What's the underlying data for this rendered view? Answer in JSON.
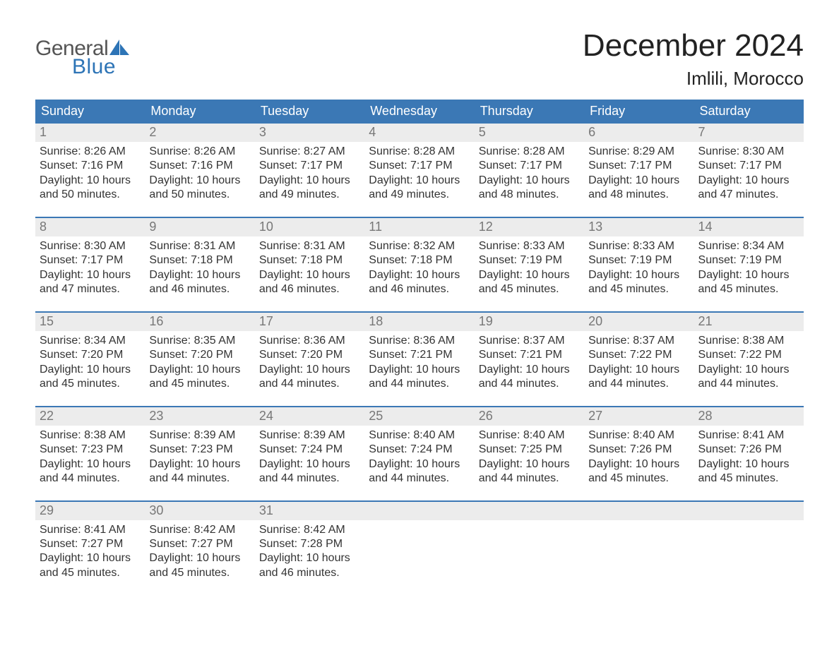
{
  "brand": {
    "text_general": "General",
    "text_blue": "Blue",
    "general_color": "#555555",
    "blue_color": "#2d74b6",
    "sail_color": "#2d74b6"
  },
  "title": "December 2024",
  "location": "Imlili, Morocco",
  "colors": {
    "header_bg": "#3b78b5",
    "header_text": "#ffffff",
    "daynum_bg": "#ececec",
    "daynum_text": "#777777",
    "body_text": "#333333",
    "week_border": "#3b78b5",
    "page_bg": "#ffffff"
  },
  "typography": {
    "title_fontsize": 44,
    "location_fontsize": 26,
    "weekday_fontsize": 18,
    "daynum_fontsize": 18,
    "content_fontsize": 16
  },
  "weekdays": [
    "Sunday",
    "Monday",
    "Tuesday",
    "Wednesday",
    "Thursday",
    "Friday",
    "Saturday"
  ],
  "weeks": [
    [
      {
        "day": "1",
        "sunrise": "Sunrise: 8:26 AM",
        "sunset": "Sunset: 7:16 PM",
        "daylight1": "Daylight: 10 hours",
        "daylight2": "and 50 minutes."
      },
      {
        "day": "2",
        "sunrise": "Sunrise: 8:26 AM",
        "sunset": "Sunset: 7:16 PM",
        "daylight1": "Daylight: 10 hours",
        "daylight2": "and 50 minutes."
      },
      {
        "day": "3",
        "sunrise": "Sunrise: 8:27 AM",
        "sunset": "Sunset: 7:17 PM",
        "daylight1": "Daylight: 10 hours",
        "daylight2": "and 49 minutes."
      },
      {
        "day": "4",
        "sunrise": "Sunrise: 8:28 AM",
        "sunset": "Sunset: 7:17 PM",
        "daylight1": "Daylight: 10 hours",
        "daylight2": "and 49 minutes."
      },
      {
        "day": "5",
        "sunrise": "Sunrise: 8:28 AM",
        "sunset": "Sunset: 7:17 PM",
        "daylight1": "Daylight: 10 hours",
        "daylight2": "and 48 minutes."
      },
      {
        "day": "6",
        "sunrise": "Sunrise: 8:29 AM",
        "sunset": "Sunset: 7:17 PM",
        "daylight1": "Daylight: 10 hours",
        "daylight2": "and 48 minutes."
      },
      {
        "day": "7",
        "sunrise": "Sunrise: 8:30 AM",
        "sunset": "Sunset: 7:17 PM",
        "daylight1": "Daylight: 10 hours",
        "daylight2": "and 47 minutes."
      }
    ],
    [
      {
        "day": "8",
        "sunrise": "Sunrise: 8:30 AM",
        "sunset": "Sunset: 7:17 PM",
        "daylight1": "Daylight: 10 hours",
        "daylight2": "and 47 minutes."
      },
      {
        "day": "9",
        "sunrise": "Sunrise: 8:31 AM",
        "sunset": "Sunset: 7:18 PM",
        "daylight1": "Daylight: 10 hours",
        "daylight2": "and 46 minutes."
      },
      {
        "day": "10",
        "sunrise": "Sunrise: 8:31 AM",
        "sunset": "Sunset: 7:18 PM",
        "daylight1": "Daylight: 10 hours",
        "daylight2": "and 46 minutes."
      },
      {
        "day": "11",
        "sunrise": "Sunrise: 8:32 AM",
        "sunset": "Sunset: 7:18 PM",
        "daylight1": "Daylight: 10 hours",
        "daylight2": "and 46 minutes."
      },
      {
        "day": "12",
        "sunrise": "Sunrise: 8:33 AM",
        "sunset": "Sunset: 7:19 PM",
        "daylight1": "Daylight: 10 hours",
        "daylight2": "and 45 minutes."
      },
      {
        "day": "13",
        "sunrise": "Sunrise: 8:33 AM",
        "sunset": "Sunset: 7:19 PM",
        "daylight1": "Daylight: 10 hours",
        "daylight2": "and 45 minutes."
      },
      {
        "day": "14",
        "sunrise": "Sunrise: 8:34 AM",
        "sunset": "Sunset: 7:19 PM",
        "daylight1": "Daylight: 10 hours",
        "daylight2": "and 45 minutes."
      }
    ],
    [
      {
        "day": "15",
        "sunrise": "Sunrise: 8:34 AM",
        "sunset": "Sunset: 7:20 PM",
        "daylight1": "Daylight: 10 hours",
        "daylight2": "and 45 minutes."
      },
      {
        "day": "16",
        "sunrise": "Sunrise: 8:35 AM",
        "sunset": "Sunset: 7:20 PM",
        "daylight1": "Daylight: 10 hours",
        "daylight2": "and 45 minutes."
      },
      {
        "day": "17",
        "sunrise": "Sunrise: 8:36 AM",
        "sunset": "Sunset: 7:20 PM",
        "daylight1": "Daylight: 10 hours",
        "daylight2": "and 44 minutes."
      },
      {
        "day": "18",
        "sunrise": "Sunrise: 8:36 AM",
        "sunset": "Sunset: 7:21 PM",
        "daylight1": "Daylight: 10 hours",
        "daylight2": "and 44 minutes."
      },
      {
        "day": "19",
        "sunrise": "Sunrise: 8:37 AM",
        "sunset": "Sunset: 7:21 PM",
        "daylight1": "Daylight: 10 hours",
        "daylight2": "and 44 minutes."
      },
      {
        "day": "20",
        "sunrise": "Sunrise: 8:37 AM",
        "sunset": "Sunset: 7:22 PM",
        "daylight1": "Daylight: 10 hours",
        "daylight2": "and 44 minutes."
      },
      {
        "day": "21",
        "sunrise": "Sunrise: 8:38 AM",
        "sunset": "Sunset: 7:22 PM",
        "daylight1": "Daylight: 10 hours",
        "daylight2": "and 44 minutes."
      }
    ],
    [
      {
        "day": "22",
        "sunrise": "Sunrise: 8:38 AM",
        "sunset": "Sunset: 7:23 PM",
        "daylight1": "Daylight: 10 hours",
        "daylight2": "and 44 minutes."
      },
      {
        "day": "23",
        "sunrise": "Sunrise: 8:39 AM",
        "sunset": "Sunset: 7:23 PM",
        "daylight1": "Daylight: 10 hours",
        "daylight2": "and 44 minutes."
      },
      {
        "day": "24",
        "sunrise": "Sunrise: 8:39 AM",
        "sunset": "Sunset: 7:24 PM",
        "daylight1": "Daylight: 10 hours",
        "daylight2": "and 44 minutes."
      },
      {
        "day": "25",
        "sunrise": "Sunrise: 8:40 AM",
        "sunset": "Sunset: 7:24 PM",
        "daylight1": "Daylight: 10 hours",
        "daylight2": "and 44 minutes."
      },
      {
        "day": "26",
        "sunrise": "Sunrise: 8:40 AM",
        "sunset": "Sunset: 7:25 PM",
        "daylight1": "Daylight: 10 hours",
        "daylight2": "and 44 minutes."
      },
      {
        "day": "27",
        "sunrise": "Sunrise: 8:40 AM",
        "sunset": "Sunset: 7:26 PM",
        "daylight1": "Daylight: 10 hours",
        "daylight2": "and 45 minutes."
      },
      {
        "day": "28",
        "sunrise": "Sunrise: 8:41 AM",
        "sunset": "Sunset: 7:26 PM",
        "daylight1": "Daylight: 10 hours",
        "daylight2": "and 45 minutes."
      }
    ],
    [
      {
        "day": "29",
        "sunrise": "Sunrise: 8:41 AM",
        "sunset": "Sunset: 7:27 PM",
        "daylight1": "Daylight: 10 hours",
        "daylight2": "and 45 minutes."
      },
      {
        "day": "30",
        "sunrise": "Sunrise: 8:42 AM",
        "sunset": "Sunset: 7:27 PM",
        "daylight1": "Daylight: 10 hours",
        "daylight2": "and 45 minutes."
      },
      {
        "day": "31",
        "sunrise": "Sunrise: 8:42 AM",
        "sunset": "Sunset: 7:28 PM",
        "daylight1": "Daylight: 10 hours",
        "daylight2": "and 46 minutes."
      },
      {
        "empty": true
      },
      {
        "empty": true
      },
      {
        "empty": true
      },
      {
        "empty": true
      }
    ]
  ]
}
